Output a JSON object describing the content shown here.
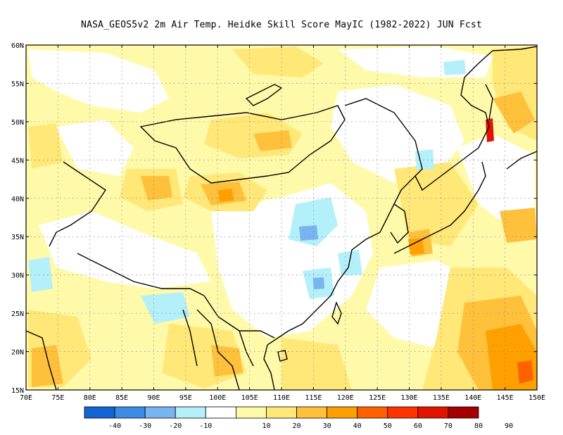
{
  "title": "NASA_GEOS5v2  2m Air Temp. Heidke Skill Score MayIC (1982-2022) JUN Fcst",
  "map": {
    "lon_labels": [
      "70E",
      "75E",
      "80E",
      "85E",
      "90E",
      "95E",
      "100E",
      "105E",
      "110E",
      "115E",
      "120E",
      "125E",
      "130E",
      "135E",
      "140E",
      "145E",
      "150E"
    ],
    "lat_labels": [
      "60N",
      "55N",
      "50N",
      "45N",
      "40N",
      "35N",
      "30N",
      "25N",
      "20N",
      "15N"
    ],
    "lon_range": [
      70,
      150
    ],
    "lat_range": [
      15,
      60
    ],
    "gridlines": true
  },
  "colorbar": {
    "labels": [
      "-40",
      "-30",
      "-20",
      "-10",
      "10",
      "20",
      "30",
      "40",
      "50",
      "60",
      "70",
      "80",
      "90"
    ],
    "colors": [
      "#1464d2",
      "#3c8ce6",
      "#78b4f0",
      "#b4f0fa",
      "#ffffff",
      "#fffaaa",
      "#ffe878",
      "#ffc03c",
      "#ffa000",
      "#ff6000",
      "#ff3200",
      "#e11400",
      "#a50000"
    ]
  },
  "regions": {
    "colors": {
      "blue_light": "#b4f0fa",
      "blue_mid": "#78b4f0",
      "yellow_pale": "#fffaaa",
      "yellow": "#ffe878",
      "orange_light": "#ffc03c",
      "orange": "#ffa000",
      "orange_red": "#ff6000",
      "red": "#e11400",
      "dark_red": "#a50000"
    }
  }
}
